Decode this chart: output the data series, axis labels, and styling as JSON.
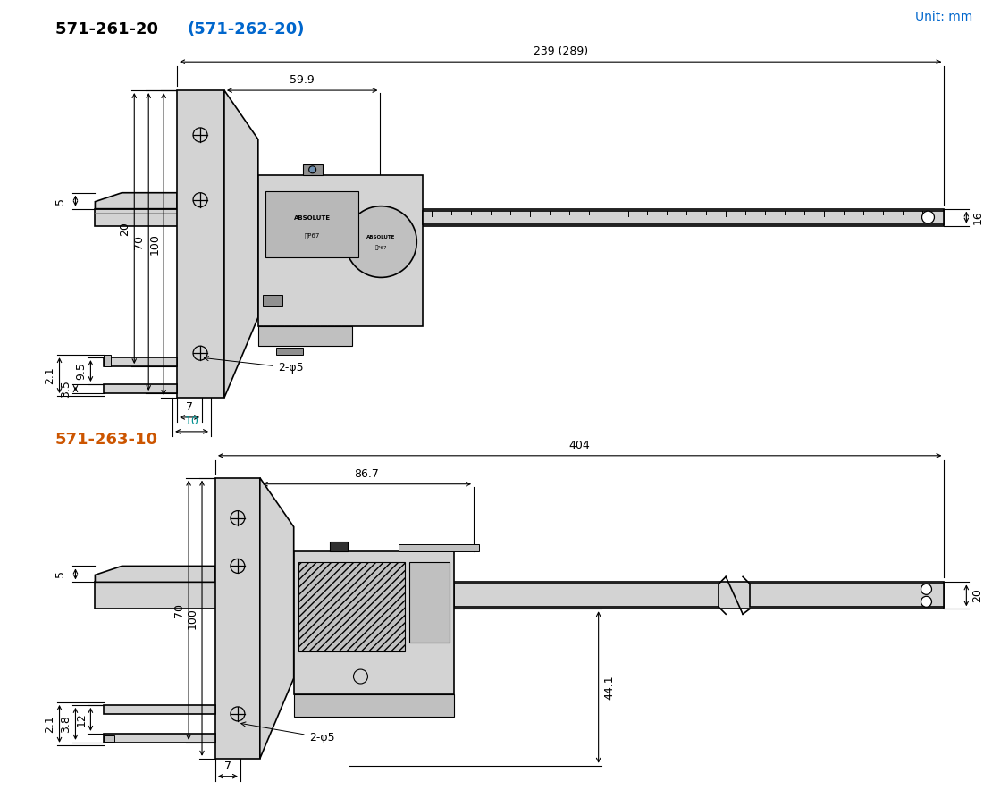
{
  "title1_black": "571-261-20 ",
  "title1_blue": "(571-262-20)",
  "title2": "571-263-10",
  "unit_label": "Unit: mm",
  "bg_color": "#ffffff",
  "gc": "#d3d3d3",
  "gc2": "#c0c0c0",
  "lc": "#000000",
  "upper": {
    "total_length": "239 (289)",
    "slider_width": "59.9",
    "h16": "16",
    "h5": "5",
    "d100": "100",
    "d70": "70",
    "d20": "20",
    "p9_5": "9.5",
    "p3_5": "3.5",
    "p2_1": "2.1",
    "hole7": "7",
    "hole10": "10",
    "hole_label": "2-φ5"
  },
  "lower": {
    "total_length": "404",
    "slider_width": "86.7",
    "h20": "20",
    "h5": "5",
    "d100": "100",
    "d70": "70",
    "p12": "12",
    "p3_8": "3.8",
    "p2_1": "2.1",
    "hole7": "7",
    "hole_label": "2-φ5",
    "d44_1": "44.1"
  }
}
